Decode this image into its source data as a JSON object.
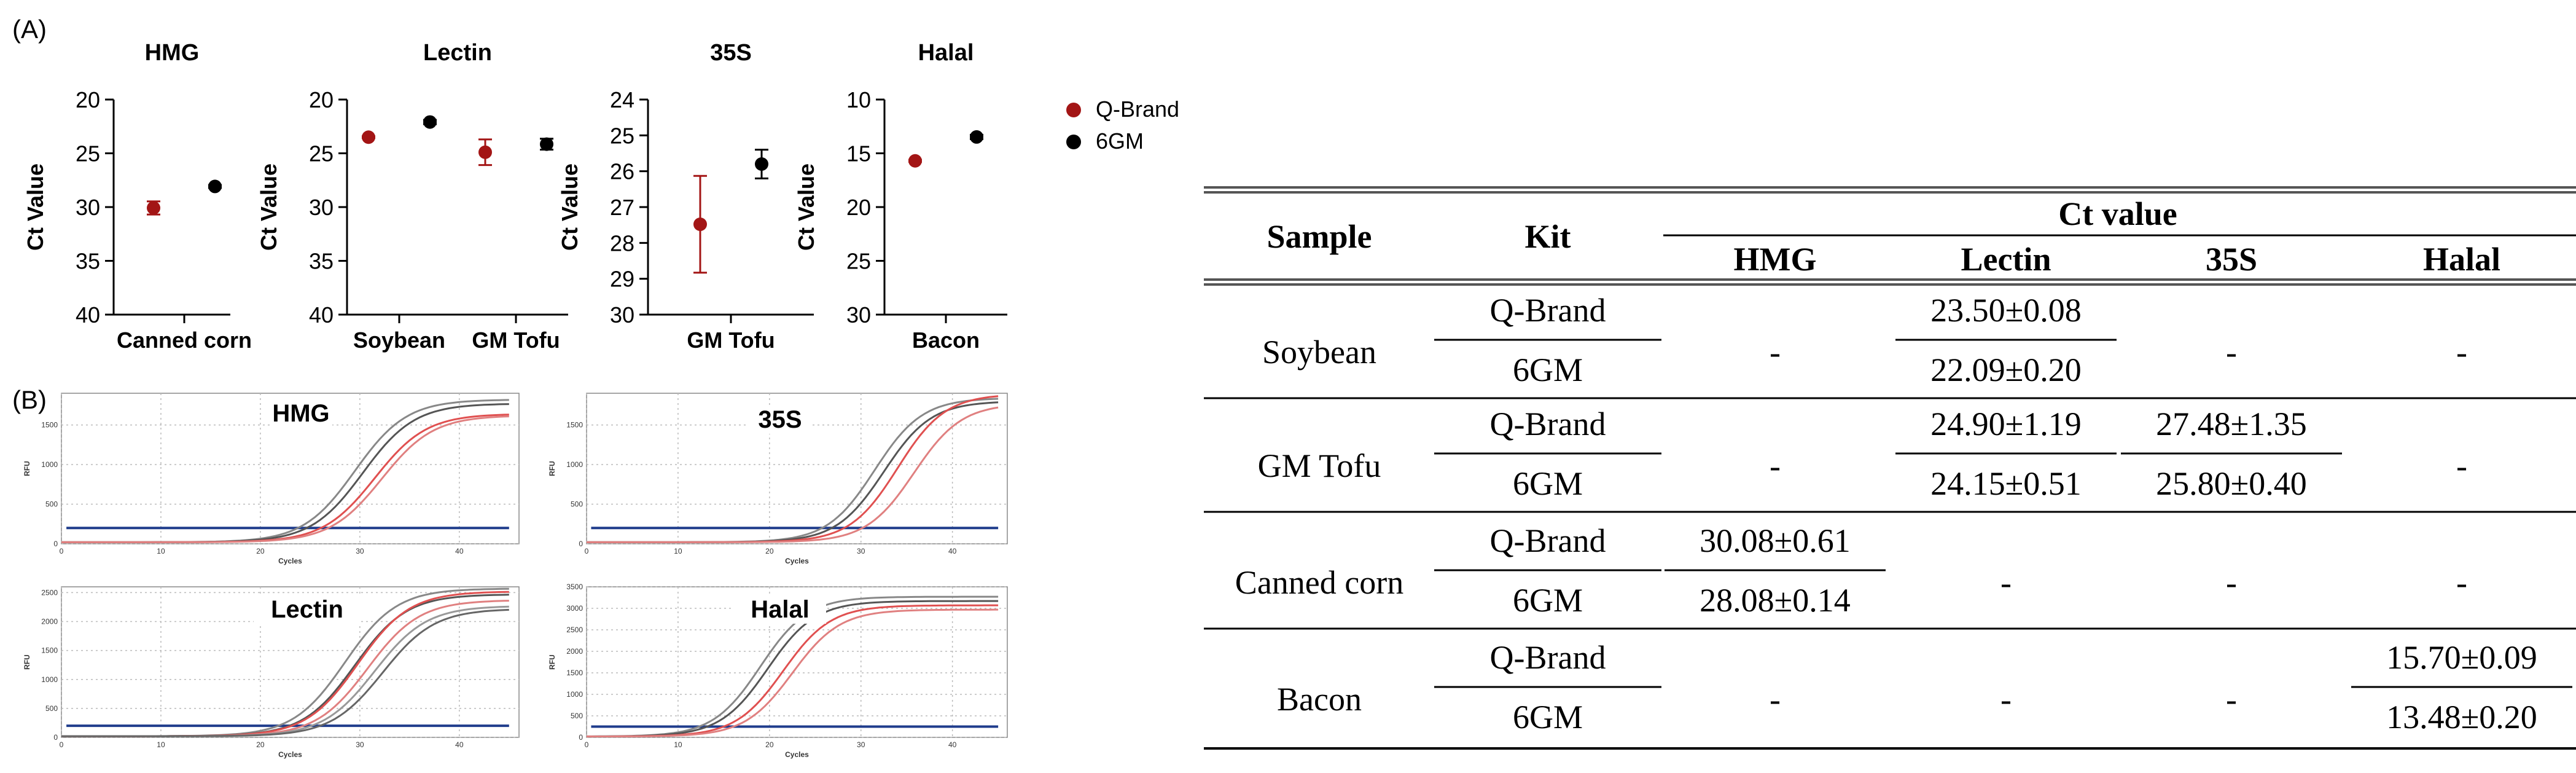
{
  "panel_labels": {
    "a": "(A)",
    "b": "(B)"
  },
  "legend": [
    {
      "label": "Q-Brand",
      "color": "#a31515"
    },
    {
      "label": "6GM",
      "color": "#000000"
    }
  ],
  "chart_data": [
    {
      "type": "scatter",
      "title": "HMG",
      "ylabel": "Ct Value",
      "y_inverted": true,
      "ylim": [
        40,
        20
      ],
      "yticks": [
        20,
        25,
        30,
        35,
        40
      ],
      "categories": [
        "Canned corn"
      ],
      "series": [
        {
          "name": "Q-Brand",
          "color": "#a31515",
          "values": [
            30.08
          ],
          "errors": [
            0.61
          ]
        },
        {
          "name": "6GM",
          "color": "#000000",
          "values": [
            28.08
          ],
          "errors": [
            0.14
          ]
        }
      ]
    },
    {
      "type": "scatter",
      "title": "Lectin",
      "ylabel": "Ct Value",
      "y_inverted": true,
      "ylim": [
        40,
        20
      ],
      "yticks": [
        20,
        25,
        30,
        35,
        40
      ],
      "categories": [
        "Soybean",
        "GM Tofu"
      ],
      "series": [
        {
          "name": "Q-Brand",
          "color": "#a31515",
          "values": [
            23.5,
            24.9
          ],
          "errors": [
            0.08,
            1.19
          ]
        },
        {
          "name": "6GM",
          "color": "#000000",
          "values": [
            22.09,
            24.15
          ],
          "errors": [
            0.2,
            0.51
          ]
        }
      ]
    },
    {
      "type": "scatter",
      "title": "35S",
      "ylabel": "Ct Value",
      "y_inverted": true,
      "ylim": [
        30,
        24
      ],
      "yticks": [
        24,
        25,
        26,
        27,
        28,
        29,
        30
      ],
      "categories": [
        "GM Tofu"
      ],
      "series": [
        {
          "name": "Q-Brand",
          "color": "#a31515",
          "values": [
            27.48
          ],
          "errors": [
            1.35
          ]
        },
        {
          "name": "6GM",
          "color": "#000000",
          "values": [
            25.8
          ],
          "errors": [
            0.4
          ]
        }
      ]
    },
    {
      "type": "scatter",
      "title": "Halal",
      "ylabel": "Ct Value",
      "y_inverted": true,
      "ylim": [
        30,
        10
      ],
      "yticks": [
        10,
        15,
        20,
        25,
        30
      ],
      "categories": [
        "Bacon"
      ],
      "series": [
        {
          "name": "Q-Brand",
          "color": "#a31515",
          "values": [
            15.7
          ],
          "errors": [
            0.09
          ]
        },
        {
          "name": "6GM",
          "color": "#000000",
          "values": [
            13.48
          ],
          "errors": [
            0.2
          ]
        }
      ]
    }
  ],
  "amplification_plots": [
    {
      "title": "HMG",
      "xlabel": "Cycles",
      "ylabel": "RFU",
      "ylim": [
        0,
        1900
      ],
      "yticks": [
        0,
        500,
        1000,
        1500
      ],
      "xticks": [
        0,
        10,
        20,
        30,
        40
      ],
      "threshold": 200,
      "curves": [
        {
          "color": "#888888",
          "mid": 29.5,
          "top": 1800
        },
        {
          "color": "#555555",
          "mid": 30.3,
          "top": 1750
        },
        {
          "color": "#e05050",
          "mid": 31.5,
          "top": 1620
        },
        {
          "color": "#e08080",
          "mid": 32.2,
          "top": 1600
        }
      ]
    },
    {
      "title": "35S",
      "xlabel": "Cycles",
      "ylabel": "RFU",
      "ylim": [
        0,
        1900
      ],
      "yticks": [
        0,
        500,
        1000,
        1500
      ],
      "xticks": [
        0,
        10,
        20,
        30,
        40
      ],
      "threshold": 200,
      "curves": [
        {
          "color": "#888888",
          "mid": 31.5,
          "top": 1820
        },
        {
          "color": "#555555",
          "mid": 32.5,
          "top": 1780
        },
        {
          "color": "#e05050",
          "mid": 34.0,
          "top": 1870
        },
        {
          "color": "#e08080",
          "mid": 35.8,
          "top": 1750
        }
      ]
    },
    {
      "title": "Lectin",
      "xlabel": "Cycles",
      "ylabel": "RFU",
      "ylim": [
        0,
        2600
      ],
      "yticks": [
        0,
        500,
        1000,
        1500,
        2000,
        2500
      ],
      "xticks": [
        0,
        10,
        20,
        30,
        40
      ],
      "threshold": 200,
      "curves": [
        {
          "color": "#888888",
          "mid": 28.5,
          "top": 2550
        },
        {
          "color": "#555555",
          "mid": 29.5,
          "top": 2450
        },
        {
          "color": "#e05050",
          "mid": 29.8,
          "top": 2500
        },
        {
          "color": "#e08080",
          "mid": 30.8,
          "top": 2350
        },
        {
          "color": "#999999",
          "mid": 31.5,
          "top": 2250
        },
        {
          "color": "#666666",
          "mid": 32.3,
          "top": 2200
        }
      ]
    },
    {
      "title": "Halal",
      "xlabel": "Cycles",
      "ylabel": "RFU",
      "ylim": [
        0,
        3500
      ],
      "yticks": [
        0,
        500,
        1000,
        1500,
        2000,
        2500,
        3000,
        3500
      ],
      "xticks": [
        0,
        10,
        20,
        30,
        40
      ],
      "threshold": 250,
      "curves": [
        {
          "color": "#888888",
          "mid": 19.0,
          "top": 3250
        },
        {
          "color": "#555555",
          "mid": 19.8,
          "top": 3150
        },
        {
          "color": "#e05050",
          "mid": 21.5,
          "top": 3050
        },
        {
          "color": "#e08080",
          "mid": 22.5,
          "top": 2950
        }
      ]
    }
  ],
  "table": {
    "header": {
      "sample": "Sample",
      "kit": "Kit",
      "ct_value": "Ct value",
      "targets": [
        "HMG",
        "Lectin",
        "35S",
        "Halal"
      ]
    },
    "rows": [
      {
        "sample": "Soybean",
        "kits": [
          "Q-Brand",
          "6GM"
        ],
        "values": [
          [
            "-"
          ],
          [
            "23.50±0.08",
            "22.09±0.20"
          ],
          [
            "-"
          ],
          [
            "-"
          ]
        ]
      },
      {
        "sample": "GM Tofu",
        "kits": [
          "Q-Brand",
          "6GM"
        ],
        "values": [
          [
            "-"
          ],
          [
            "24.90±1.19",
            "24.15±0.51"
          ],
          [
            "27.48±1.35",
            "25.80±0.40"
          ],
          [
            "-"
          ]
        ]
      },
      {
        "sample": "Canned corn",
        "kits": [
          "Q-Brand",
          "6GM"
        ],
        "values": [
          [
            "30.08±0.61",
            "28.08±0.14"
          ],
          [
            "-"
          ],
          [
            "-"
          ],
          [
            "-"
          ]
        ]
      },
      {
        "sample": "Bacon",
        "kits": [
          "Q-Brand",
          "6GM"
        ],
        "values": [
          [
            "-"
          ],
          [
            "-"
          ],
          [
            "-"
          ],
          [
            "15.70±0.09",
            "13.48±0.20"
          ]
        ]
      }
    ]
  }
}
